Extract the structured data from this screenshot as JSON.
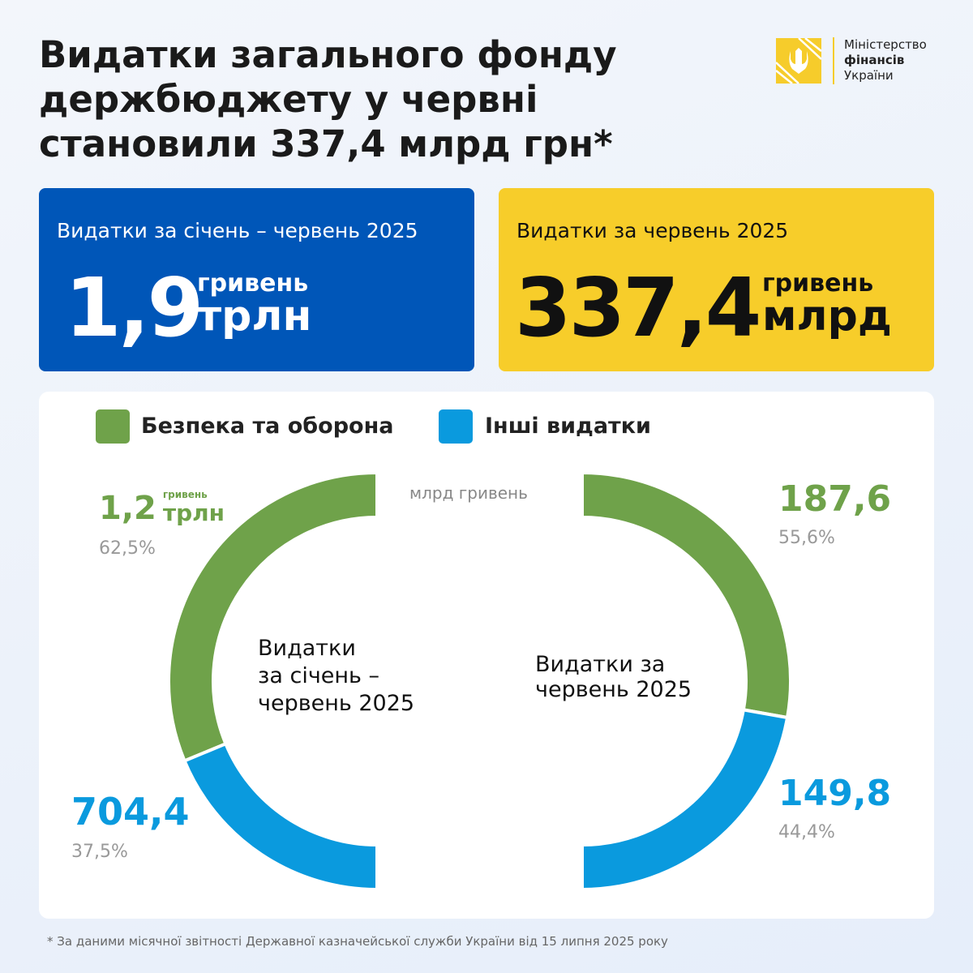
{
  "logo": {
    "lines": [
      "Міністерство",
      "фінансів",
      "України"
    ]
  },
  "title": [
    "Видатки загального фонду",
    "держбюджету у червні",
    "становили 337,4 млрд грн*"
  ],
  "cards": [
    {
      "label": "Видатки за січень – червень 2025",
      "value": "1,9",
      "unit_top": "гривень",
      "unit": "трлн"
    },
    {
      "label": "Видатки за червень 2025",
      "value": "337,4",
      "unit_top": "гривень",
      "unit": "млрд"
    }
  ],
  "legend": [
    {
      "name": "Безпека та оборона",
      "color": "#6fa24a"
    },
    {
      "name": "Інші видатки",
      "color": "#0a9ade"
    }
  ],
  "chart_data": [
    {
      "type": "half-donut",
      "side": "left",
      "center_label": [
        "Видатки",
        "за січень –",
        "червень 2025"
      ],
      "values": [
        62.5,
        37.5
      ],
      "value_labels": [
        "62,5%",
        "37,5%"
      ],
      "amounts": [
        "1,2",
        "704,4"
      ],
      "amount_unit_top": "гривень",
      "amount_unit": "трлн"
    },
    {
      "type": "half-donut",
      "side": "right",
      "center_label": [
        "Видатки за",
        "червень 2025"
      ],
      "unit_note": "млрд гривень",
      "values": [
        55.6,
        44.4
      ],
      "value_labels": [
        "55,6%",
        "44,4%"
      ],
      "amounts": [
        "187,6",
        "149,8"
      ]
    }
  ],
  "footnote": "* За даними місячної звітності Державної казначейської служби України від 15 липня 2025 року"
}
